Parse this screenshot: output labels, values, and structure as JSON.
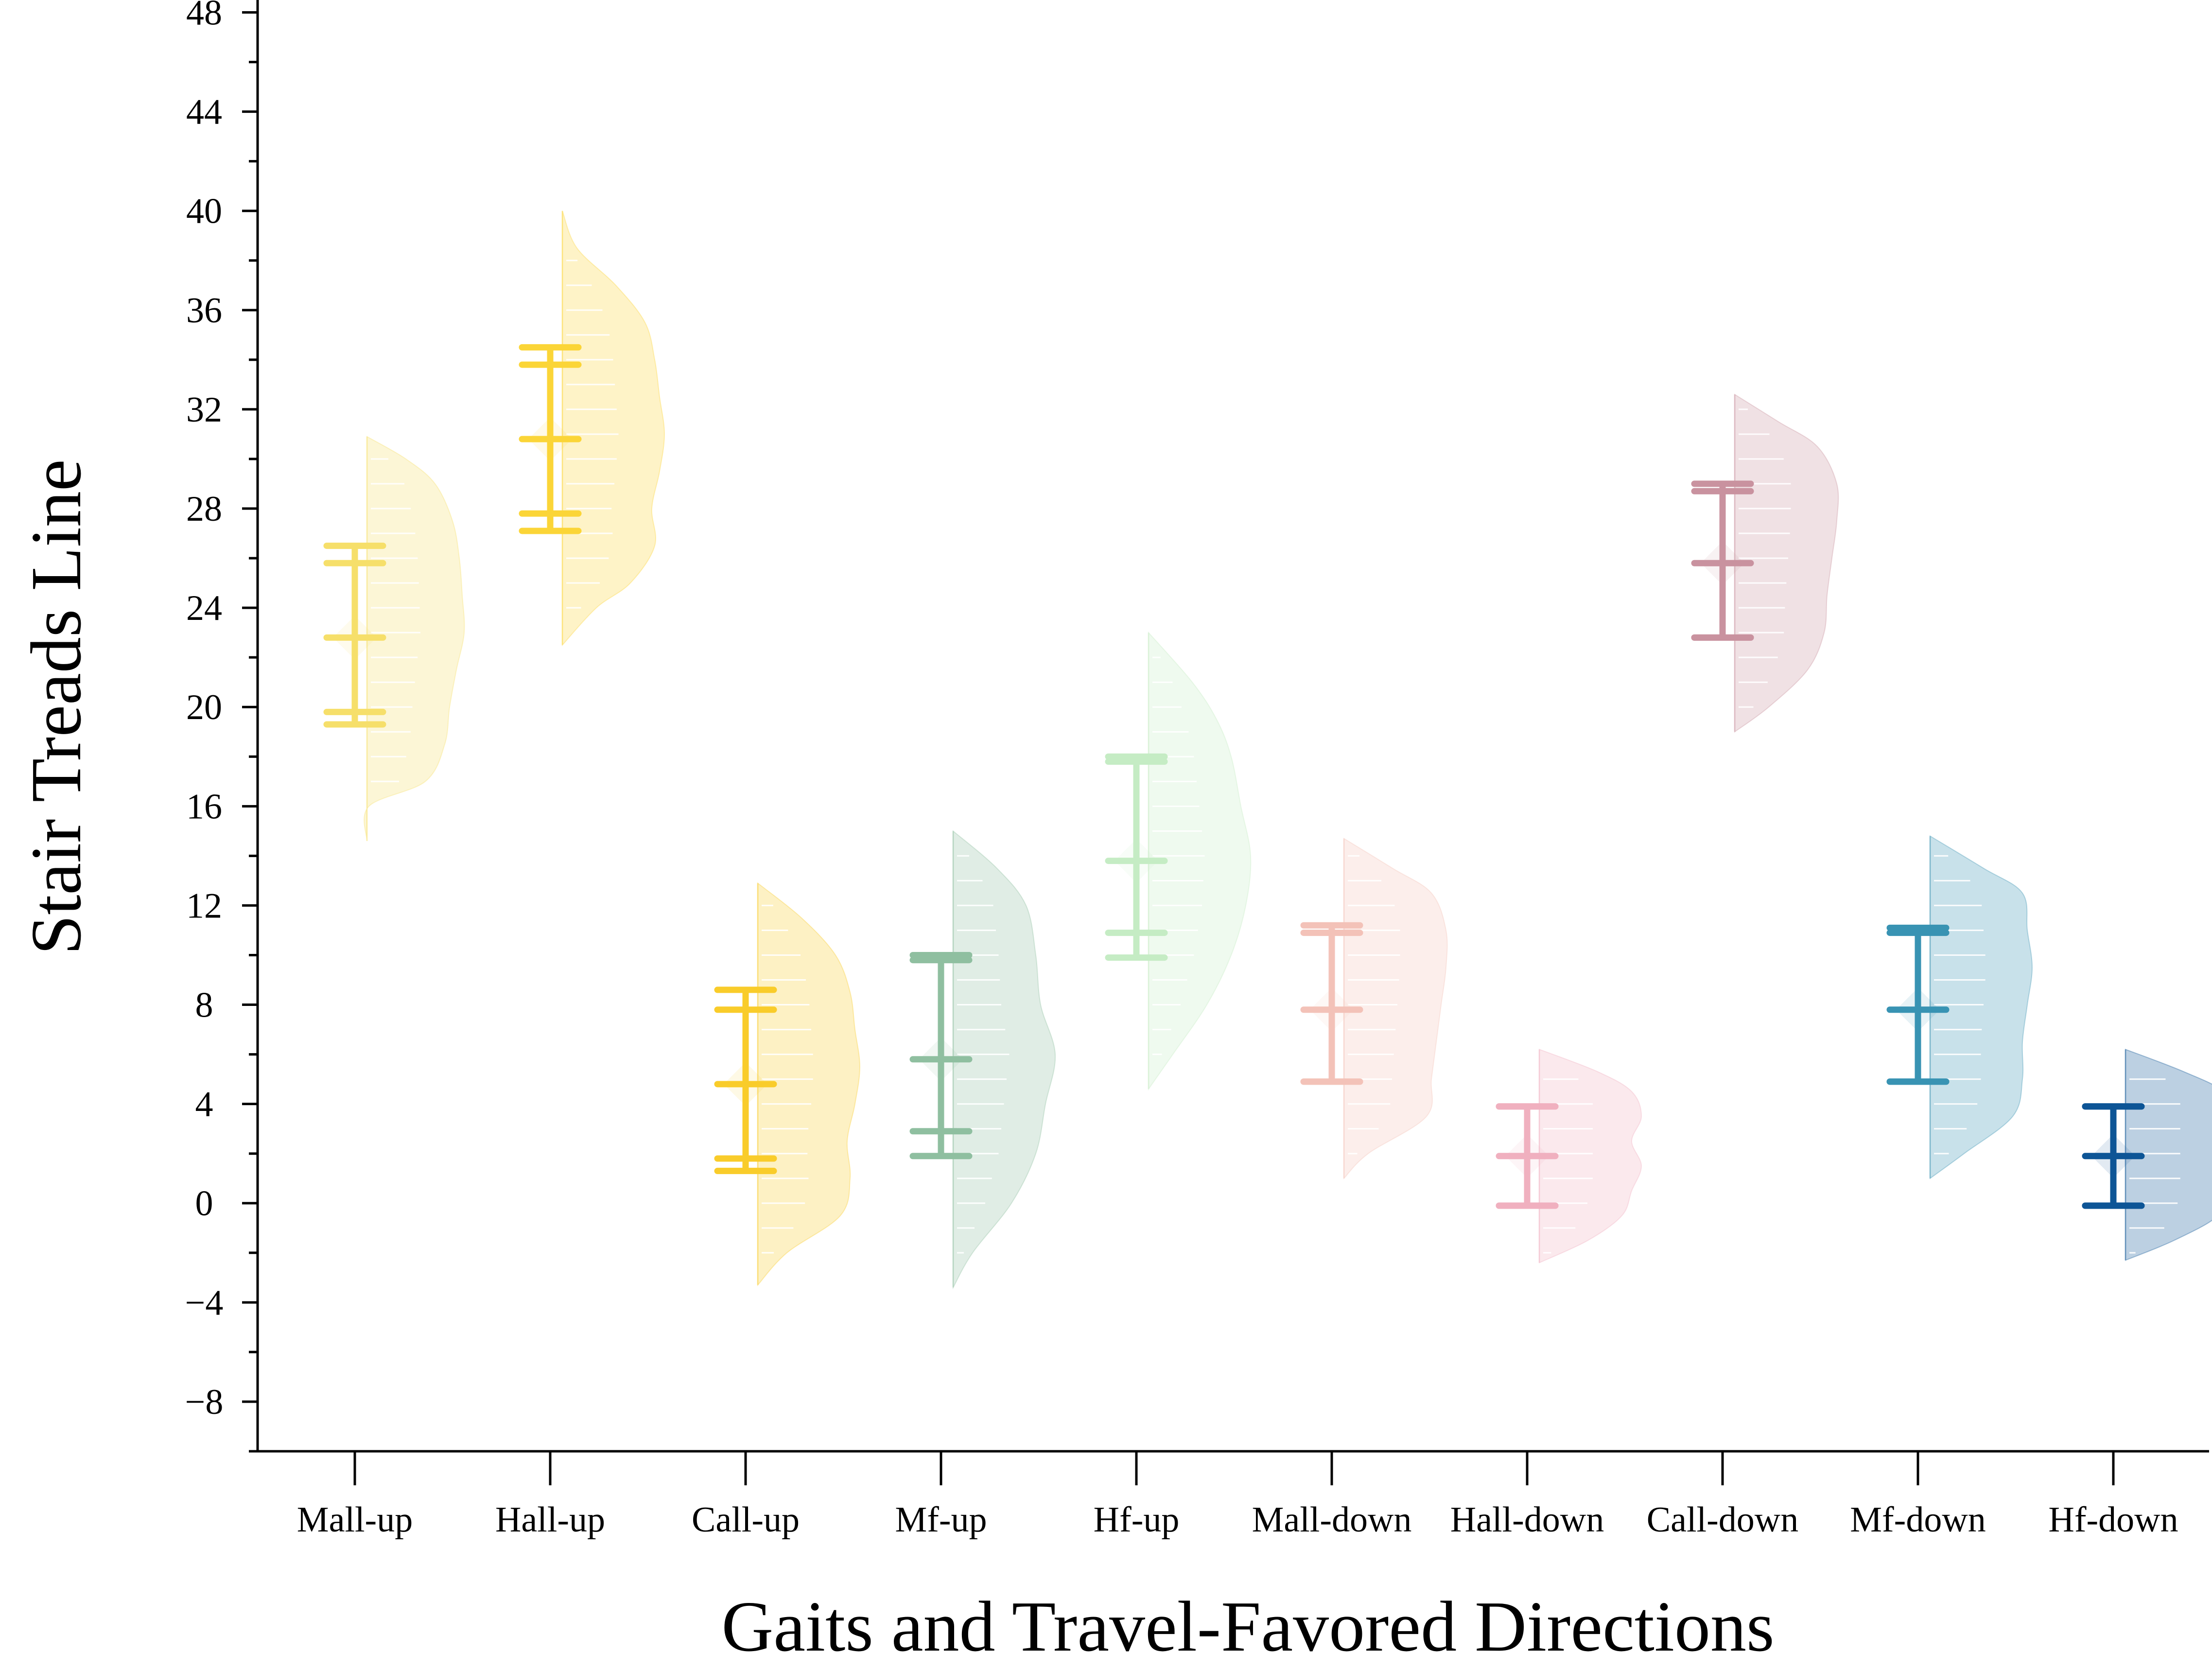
{
  "chart_data": {
    "type": "raincloud",
    "xlabel": "Gaits and Travel-Favored Directions",
    "ylabel": "Stair Treads Line",
    "ylim": [
      -10,
      48.5
    ],
    "yticks": [
      -8,
      -4,
      0,
      4,
      8,
      12,
      16,
      20,
      24,
      28,
      32,
      36,
      40,
      44,
      48
    ],
    "ytick_labels": [
      "−8",
      "−4",
      "0",
      "4",
      "8",
      "12",
      "16",
      "20",
      "24",
      "28",
      "32",
      "36",
      "40",
      "44",
      "48"
    ],
    "minor_ticks": true,
    "grid": false,
    "categories": [
      "Mall-up",
      "Hall-up",
      "Call-up",
      "Mf-up",
      "Hf-up",
      "Mall-down",
      "Hall-down",
      "Call-down",
      "Mf-down",
      "Hf-down"
    ],
    "series": [
      {
        "color": "#f6df6a",
        "whisker_low": 19.3,
        "q1": 19.8,
        "median": 22.8,
        "q3": 25.8,
        "whisker_high": 26.5,
        "mean": 22.8,
        "density": {
          "min": 14.6,
          "max": 30.9,
          "profile": [
            [
              14.6,
              0.0
            ],
            [
              16.0,
              0.02
            ],
            [
              17.0,
              0.6
            ],
            [
              18.5,
              0.8
            ],
            [
              20.0,
              0.85
            ],
            [
              21.5,
              0.92
            ],
            [
              23.0,
              1.0
            ],
            [
              24.5,
              0.98
            ],
            [
              26.0,
              0.95
            ],
            [
              27.5,
              0.88
            ],
            [
              29.0,
              0.7
            ],
            [
              30.0,
              0.4
            ],
            [
              30.9,
              0.0
            ]
          ]
        }
      },
      {
        "color": "#fbd537",
        "whisker_low": 27.1,
        "q1": 27.8,
        "median": 30.8,
        "q3": 33.8,
        "whisker_high": 34.5,
        "mean": 30.8,
        "density": {
          "min": 22.5,
          "max": 40.0,
          "profile": [
            [
              22.5,
              0.0
            ],
            [
              24.0,
              0.35
            ],
            [
              25.0,
              0.7
            ],
            [
              26.5,
              0.95
            ],
            [
              28.0,
              0.92
            ],
            [
              29.5,
              1.0
            ],
            [
              31.0,
              1.05
            ],
            [
              32.5,
              1.0
            ],
            [
              34.0,
              0.95
            ],
            [
              35.5,
              0.85
            ],
            [
              37.0,
              0.55
            ],
            [
              38.5,
              0.15
            ],
            [
              40.0,
              0.0
            ]
          ]
        }
      },
      {
        "color": "#f9cc2a",
        "whisker_low": 1.3,
        "q1": 1.8,
        "median": 4.8,
        "q3": 7.8,
        "whisker_high": 8.6,
        "mean": 4.8,
        "density": {
          "min": -3.3,
          "max": 12.9,
          "profile": [
            [
              -3.3,
              0.0
            ],
            [
              -2.0,
              0.3
            ],
            [
              -0.5,
              0.85
            ],
            [
              1.0,
              0.95
            ],
            [
              2.5,
              0.92
            ],
            [
              4.0,
              1.0
            ],
            [
              5.5,
              1.05
            ],
            [
              7.0,
              1.0
            ],
            [
              8.5,
              0.95
            ],
            [
              10.0,
              0.8
            ],
            [
              11.5,
              0.45
            ],
            [
              12.9,
              0.0
            ]
          ]
        }
      },
      {
        "color": "#8fbfa0",
        "whisker_low": 1.9,
        "q1": 2.9,
        "median": 5.8,
        "q3": 9.8,
        "whisker_high": 10.0,
        "mean": 5.8,
        "density": {
          "min": -3.4,
          "max": 15.0,
          "profile": [
            [
              -3.4,
              0.0
            ],
            [
              -2.0,
              0.2
            ],
            [
              0.0,
              0.6
            ],
            [
              2.0,
              0.85
            ],
            [
              4.0,
              0.95
            ],
            [
              6.0,
              1.05
            ],
            [
              8.0,
              0.9
            ],
            [
              10.0,
              0.85
            ],
            [
              12.0,
              0.75
            ],
            [
              13.5,
              0.45
            ],
            [
              15.0,
              0.0
            ]
          ]
        }
      },
      {
        "color": "#c5ecc4",
        "whisker_low": 9.9,
        "q1": 10.9,
        "median": 13.8,
        "q3": 17.8,
        "whisker_high": 18.0,
        "mean": 13.8,
        "density": {
          "min": 4.6,
          "max": 23.0,
          "profile": [
            [
              4.6,
              0.0
            ],
            [
              6.0,
              0.25
            ],
            [
              8.0,
              0.6
            ],
            [
              10.0,
              0.85
            ],
            [
              12.0,
              1.0
            ],
            [
              14.0,
              1.05
            ],
            [
              16.0,
              0.95
            ],
            [
              18.0,
              0.85
            ],
            [
              19.5,
              0.7
            ],
            [
              21.0,
              0.45
            ],
            [
              23.0,
              0.0
            ]
          ]
        }
      },
      {
        "color": "#f3c2b8",
        "whisker_low": 4.9,
        "q1": 4.9,
        "median": 7.8,
        "q3": 10.9,
        "whisker_high": 11.2,
        "mean": 7.8,
        "density": {
          "min": 1.0,
          "max": 14.7,
          "profile": [
            [
              1.0,
              0.0
            ],
            [
              2.0,
              0.25
            ],
            [
              3.5,
              0.85
            ],
            [
              5.0,
              0.9
            ],
            [
              6.5,
              0.95
            ],
            [
              8.0,
              1.0
            ],
            [
              9.5,
              1.05
            ],
            [
              11.0,
              1.05
            ],
            [
              12.5,
              0.9
            ],
            [
              13.5,
              0.5
            ],
            [
              14.7,
              0.0
            ]
          ]
        }
      },
      {
        "color": "#f0b0bf",
        "whisker_low": -0.1,
        "q1": -0.1,
        "median": 1.9,
        "q3": 3.9,
        "whisker_high": 3.9,
        "mean": 1.9,
        "density": {
          "min": -2.4,
          "max": 6.2,
          "profile": [
            [
              -2.4,
              0.0
            ],
            [
              -1.5,
              0.5
            ],
            [
              -0.5,
              0.85
            ],
            [
              0.5,
              0.95
            ],
            [
              1.5,
              1.05
            ],
            [
              2.5,
              0.95
            ],
            [
              3.5,
              1.05
            ],
            [
              4.5,
              0.95
            ],
            [
              5.3,
              0.6
            ],
            [
              6.2,
              0.0
            ]
          ]
        }
      },
      {
        "color": "#c9929f",
        "whisker_low": 22.8,
        "q1": 22.8,
        "median": 25.8,
        "q3": 28.7,
        "whisker_high": 29.0,
        "mean": 25.8,
        "density": {
          "min": 19.0,
          "max": 32.6,
          "profile": [
            [
              19.0,
              0.0
            ],
            [
              20.0,
              0.35
            ],
            [
              21.5,
              0.75
            ],
            [
              23.0,
              0.92
            ],
            [
              24.5,
              0.95
            ],
            [
              26.0,
              1.0
            ],
            [
              27.5,
              1.05
            ],
            [
              29.0,
              1.05
            ],
            [
              30.5,
              0.85
            ],
            [
              31.5,
              0.45
            ],
            [
              32.6,
              0.0
            ]
          ]
        }
      },
      {
        "color": "#3893b3",
        "whisker_low": 4.9,
        "q1": 4.9,
        "median": 7.8,
        "q3": 10.9,
        "whisker_high": 11.1,
        "mean": 7.8,
        "density": {
          "min": 1.0,
          "max": 14.8,
          "profile": [
            [
              1.0,
              0.0
            ],
            [
              2.0,
              0.35
            ],
            [
              3.5,
              0.85
            ],
            [
              5.0,
              0.95
            ],
            [
              6.5,
              0.95
            ],
            [
              8.0,
              1.0
            ],
            [
              9.5,
              1.05
            ],
            [
              11.0,
              1.0
            ],
            [
              12.5,
              0.95
            ],
            [
              13.5,
              0.55
            ],
            [
              14.8,
              0.0
            ]
          ]
        }
      },
      {
        "color": "#0d5596",
        "whisker_low": -0.1,
        "q1": -0.1,
        "median": 1.9,
        "q3": 3.9,
        "whisker_high": 3.9,
        "mean": 1.9,
        "density": {
          "min": -2.3,
          "max": 6.2,
          "profile": [
            [
              -2.3,
              0.0
            ],
            [
              -1.5,
              0.5
            ],
            [
              -0.5,
              0.95
            ],
            [
              0.5,
              1.0
            ],
            [
              1.5,
              1.05
            ],
            [
              2.5,
              1.0
            ],
            [
              3.5,
              1.05
            ],
            [
              4.5,
              1.0
            ],
            [
              5.3,
              0.6
            ],
            [
              6.2,
              0.0
            ]
          ]
        }
      }
    ]
  }
}
